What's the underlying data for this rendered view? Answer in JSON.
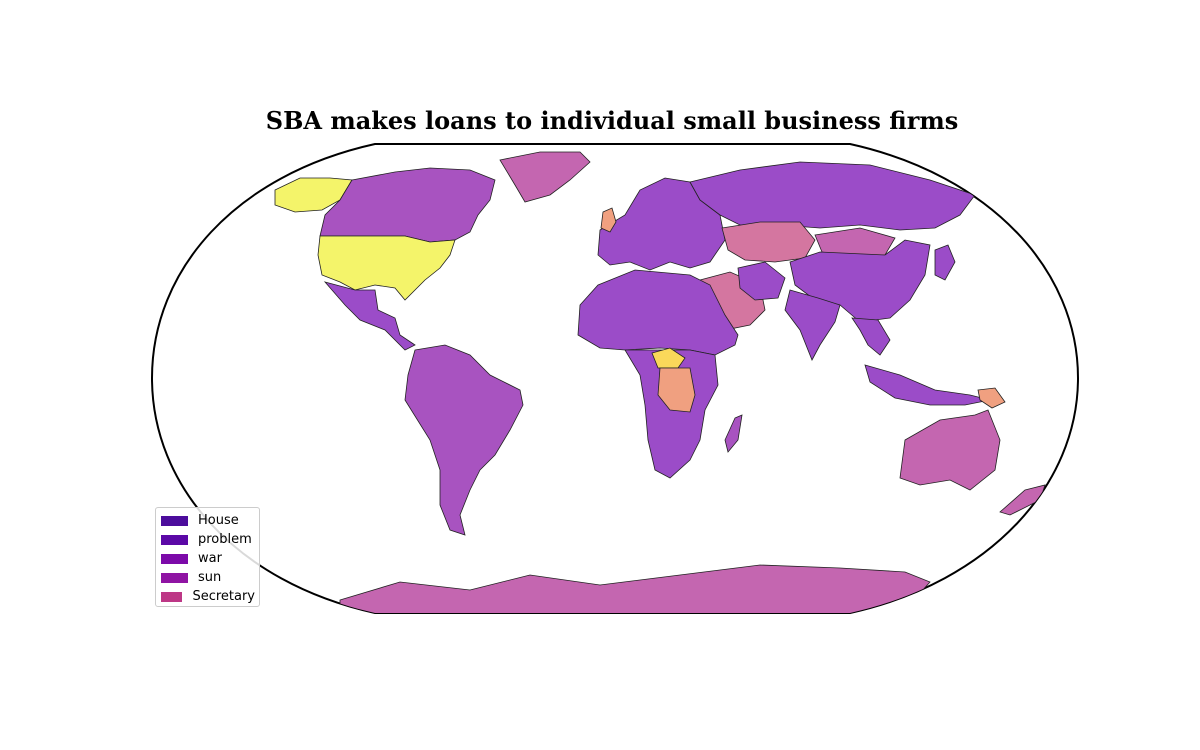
{
  "title": "SBA makes loans to individual small business firms",
  "legend": {
    "placement": "lower-left",
    "items": [
      {
        "label": "House",
        "color": "#4c0d9c"
      },
      {
        "label": "problem",
        "color": "#5b08a6"
      },
      {
        "label": "war",
        "color": "#7c0aa9"
      },
      {
        "label": "sun",
        "color": "#8f14a3"
      },
      {
        "label": "Secretary",
        "color": "#bd3786"
      }
    ]
  },
  "map": {
    "projection": "robinson",
    "land_colors": {
      "purple": "#9b4cc8",
      "violet": "#a853c0",
      "magenta": "#c466b0",
      "pink": "#d476a0",
      "salmon": "#f0a080",
      "yellow": "#f4f46a",
      "gold": "#fad85a"
    }
  }
}
